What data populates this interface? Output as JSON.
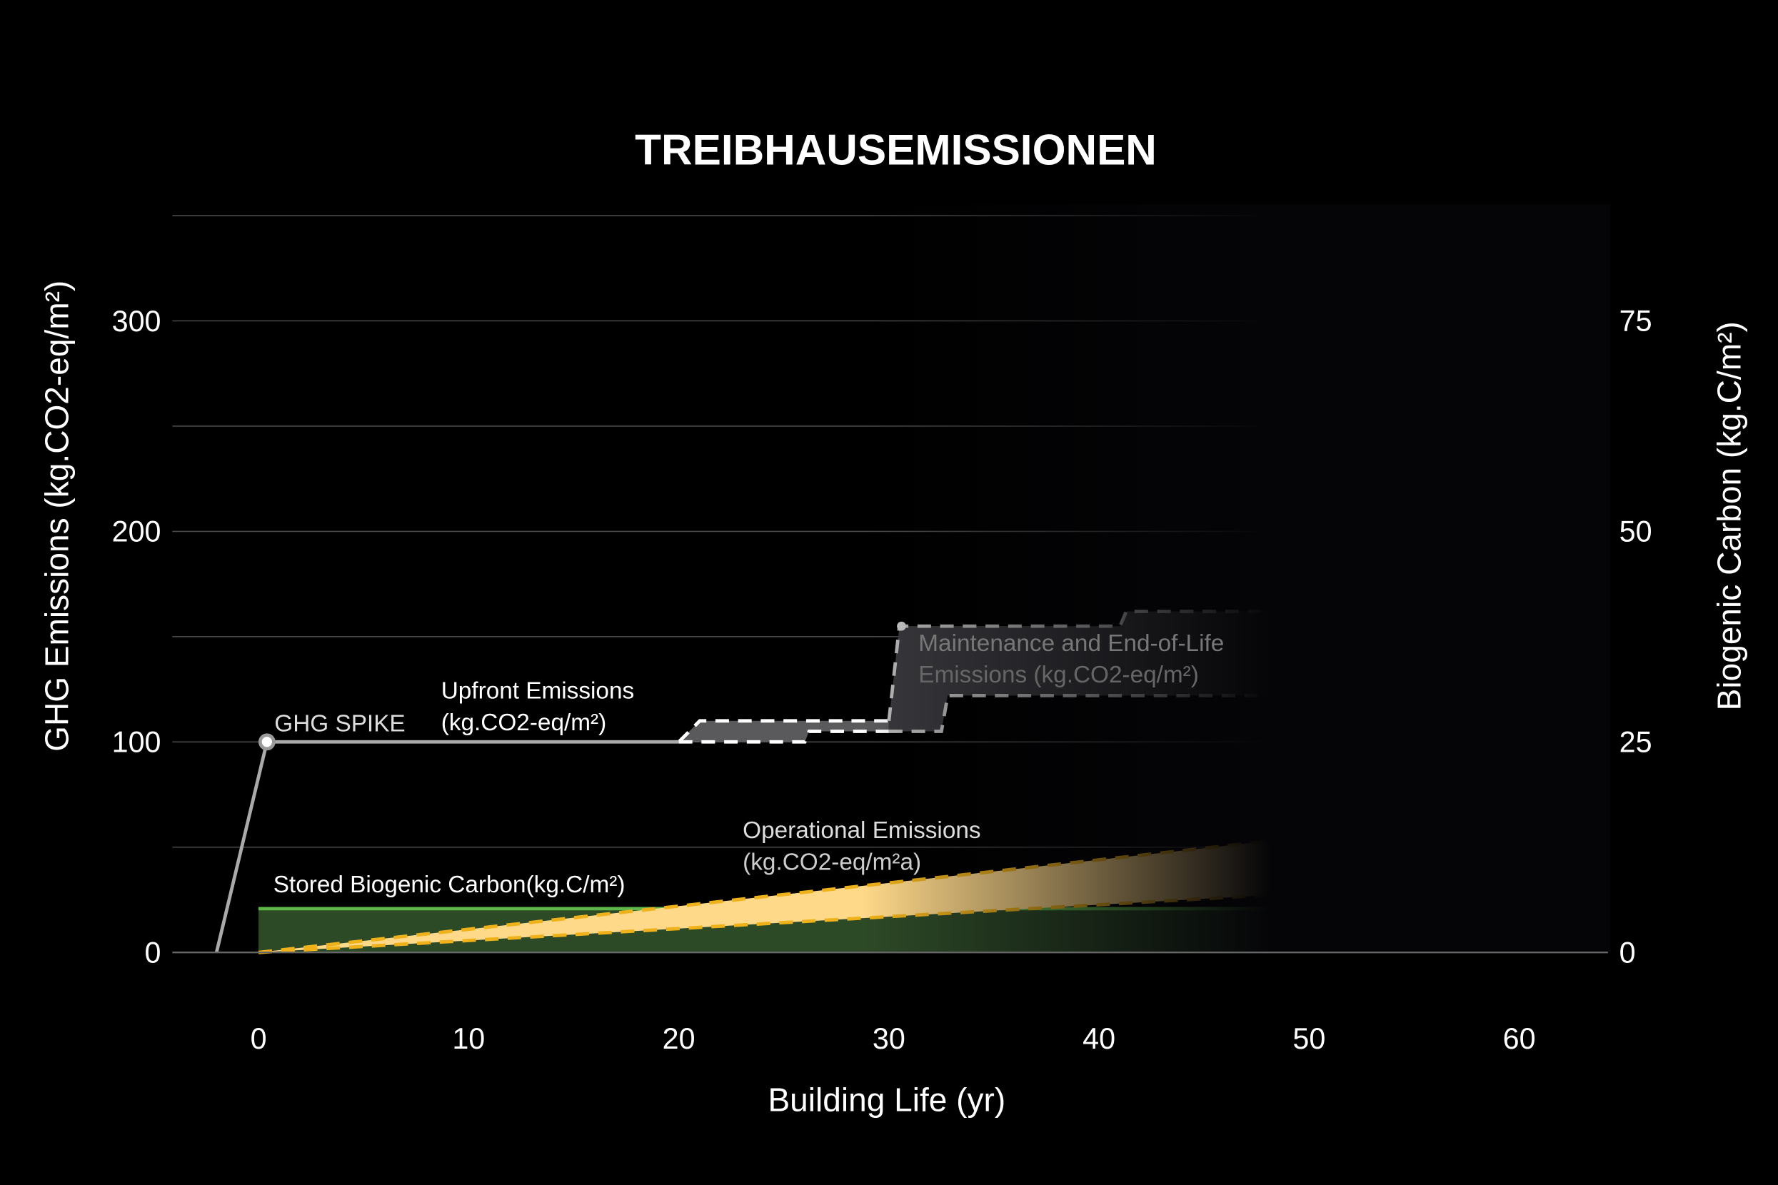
{
  "chart_data": {
    "type": "area",
    "title": "TREIBHAUSEMISSIONEN",
    "xlabel": "Building Life (yr)",
    "ylabel": "GHG Emissions (kg.CO2-eq/m²)",
    "y2label": "Biogenic Carbon (kg.C/m²)",
    "xlim": [
      -4,
      64
    ],
    "ylim": [
      0,
      350
    ],
    "y2lim": [
      0,
      87.5
    ],
    "xticks": [
      "0",
      "10",
      "20",
      "30",
      "40",
      "50",
      "60"
    ],
    "xtick_values": [
      0,
      10,
      20,
      30,
      40,
      50,
      60
    ],
    "yticks": [
      "0",
      "100",
      "200",
      "300"
    ],
    "ytick_values": [
      0,
      100,
      200,
      300
    ],
    "y2ticks": [
      "0",
      "25",
      "50",
      "75"
    ],
    "y2tick_values": [
      0,
      25,
      50,
      75
    ],
    "grid": true,
    "series": [
      {
        "name": "GHG Spike",
        "label": "GHG SPIKE",
        "points": [
          [
            -2,
            0
          ],
          [
            0.4,
            100
          ],
          [
            20,
            100
          ]
        ]
      },
      {
        "name": "Upfront Emissions",
        "label_lines": [
          "Upfront Emissions",
          "(kg.CO2-eq/m²)"
        ],
        "upper": [
          [
            20,
            100
          ],
          [
            21,
            110
          ],
          [
            30,
            110
          ]
        ],
        "lower": [
          [
            20,
            100
          ],
          [
            26,
            100
          ],
          [
            26.2,
            105
          ],
          [
            30,
            105
          ]
        ]
      },
      {
        "name": "Maintenance and End-of-Life Emissions",
        "label_lines": [
          "Maintenance and End-of-Life",
          "Emissions (kg.CO2-eq/m²)"
        ],
        "upper": [
          [
            30,
            110
          ],
          [
            30.5,
            155
          ],
          [
            41,
            155
          ],
          [
            41.3,
            162
          ],
          [
            60,
            162
          ]
        ],
        "lower": [
          [
            30,
            105
          ],
          [
            32.5,
            105
          ],
          [
            32.8,
            122
          ],
          [
            60,
            122
          ]
        ]
      },
      {
        "name": "Operational Emissions",
        "label_lines": [
          "Operational Emissions",
          "(kg.CO2-eq/m²a)"
        ],
        "upper": [
          [
            0,
            0
          ],
          [
            60,
            66
          ]
        ],
        "lower": [
          [
            0,
            0
          ],
          [
            60,
            34
          ]
        ]
      },
      {
        "name": "Stored Biogenic Carbon",
        "label": "Stored Biogenic Carbon(kg.C/m²)",
        "axis": "right",
        "points": [
          [
            0,
            5.2
          ],
          [
            60,
            5.2
          ]
        ]
      }
    ],
    "colors": {
      "biogenic_fill": "#2d4a27",
      "biogenic_line": "#5fb64b",
      "operational_fill": "#ffd98a",
      "operational_line": "#f0b21a",
      "upfront_fill": "#5a5a5c",
      "grid": "#4a4a4a"
    }
  }
}
